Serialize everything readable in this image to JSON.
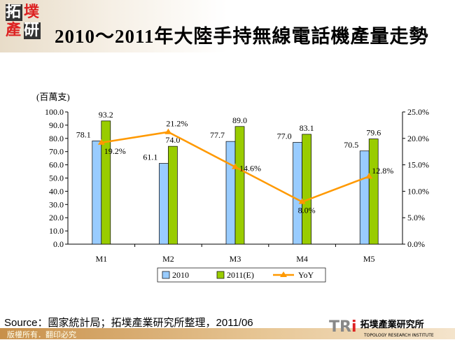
{
  "header": {
    "logo_text": "拓墣產研",
    "title": "2010～2011年大陸手持無線電話機產量走勢"
  },
  "footer": {
    "source": "Source：國家統計局；拓墣產業研究所整理，2011/06",
    "copyright": "版權所有．翻印必究",
    "brand_logo": "TRi 拓墣產業研究所 TOPOLOGY RESEARCH INSTITUTE"
  },
  "chart_data": {
    "type": "bar+line",
    "unit_label": "(百萬支)",
    "categories": [
      "M1",
      "M2",
      "M3",
      "M4",
      "M5"
    ],
    "series": [
      {
        "name": "2010",
        "type": "bar",
        "axis": "left",
        "color": "#99ccff",
        "values": [
          78.1,
          61.1,
          77.7,
          77.0,
          70.5
        ]
      },
      {
        "name": "2011(E)",
        "type": "bar",
        "axis": "left",
        "color": "#99cc00",
        "values": [
          93.2,
          74.0,
          89.0,
          83.1,
          79.6
        ]
      },
      {
        "name": "YoY",
        "type": "line",
        "axis": "right",
        "color": "#ff9900",
        "values": [
          19.2,
          21.2,
          14.6,
          8.0,
          12.8
        ],
        "labels": [
          "19.2%",
          "21.2%",
          "14.6%",
          "8.0%",
          "12.8%"
        ]
      }
    ],
    "y_left": {
      "range": [
        0,
        100
      ],
      "ticks": [
        "0.0",
        "10.0",
        "20.0",
        "30.0",
        "40.0",
        "50.0",
        "60.0",
        "70.0",
        "80.0",
        "90.0",
        "100.0"
      ]
    },
    "y_right": {
      "range": [
        0,
        25
      ],
      "ticks": [
        "0.0%",
        "5.0%",
        "10.0%",
        "15.0%",
        "20.0%",
        "25.0%"
      ]
    },
    "grid": false,
    "legend": "bottom"
  }
}
